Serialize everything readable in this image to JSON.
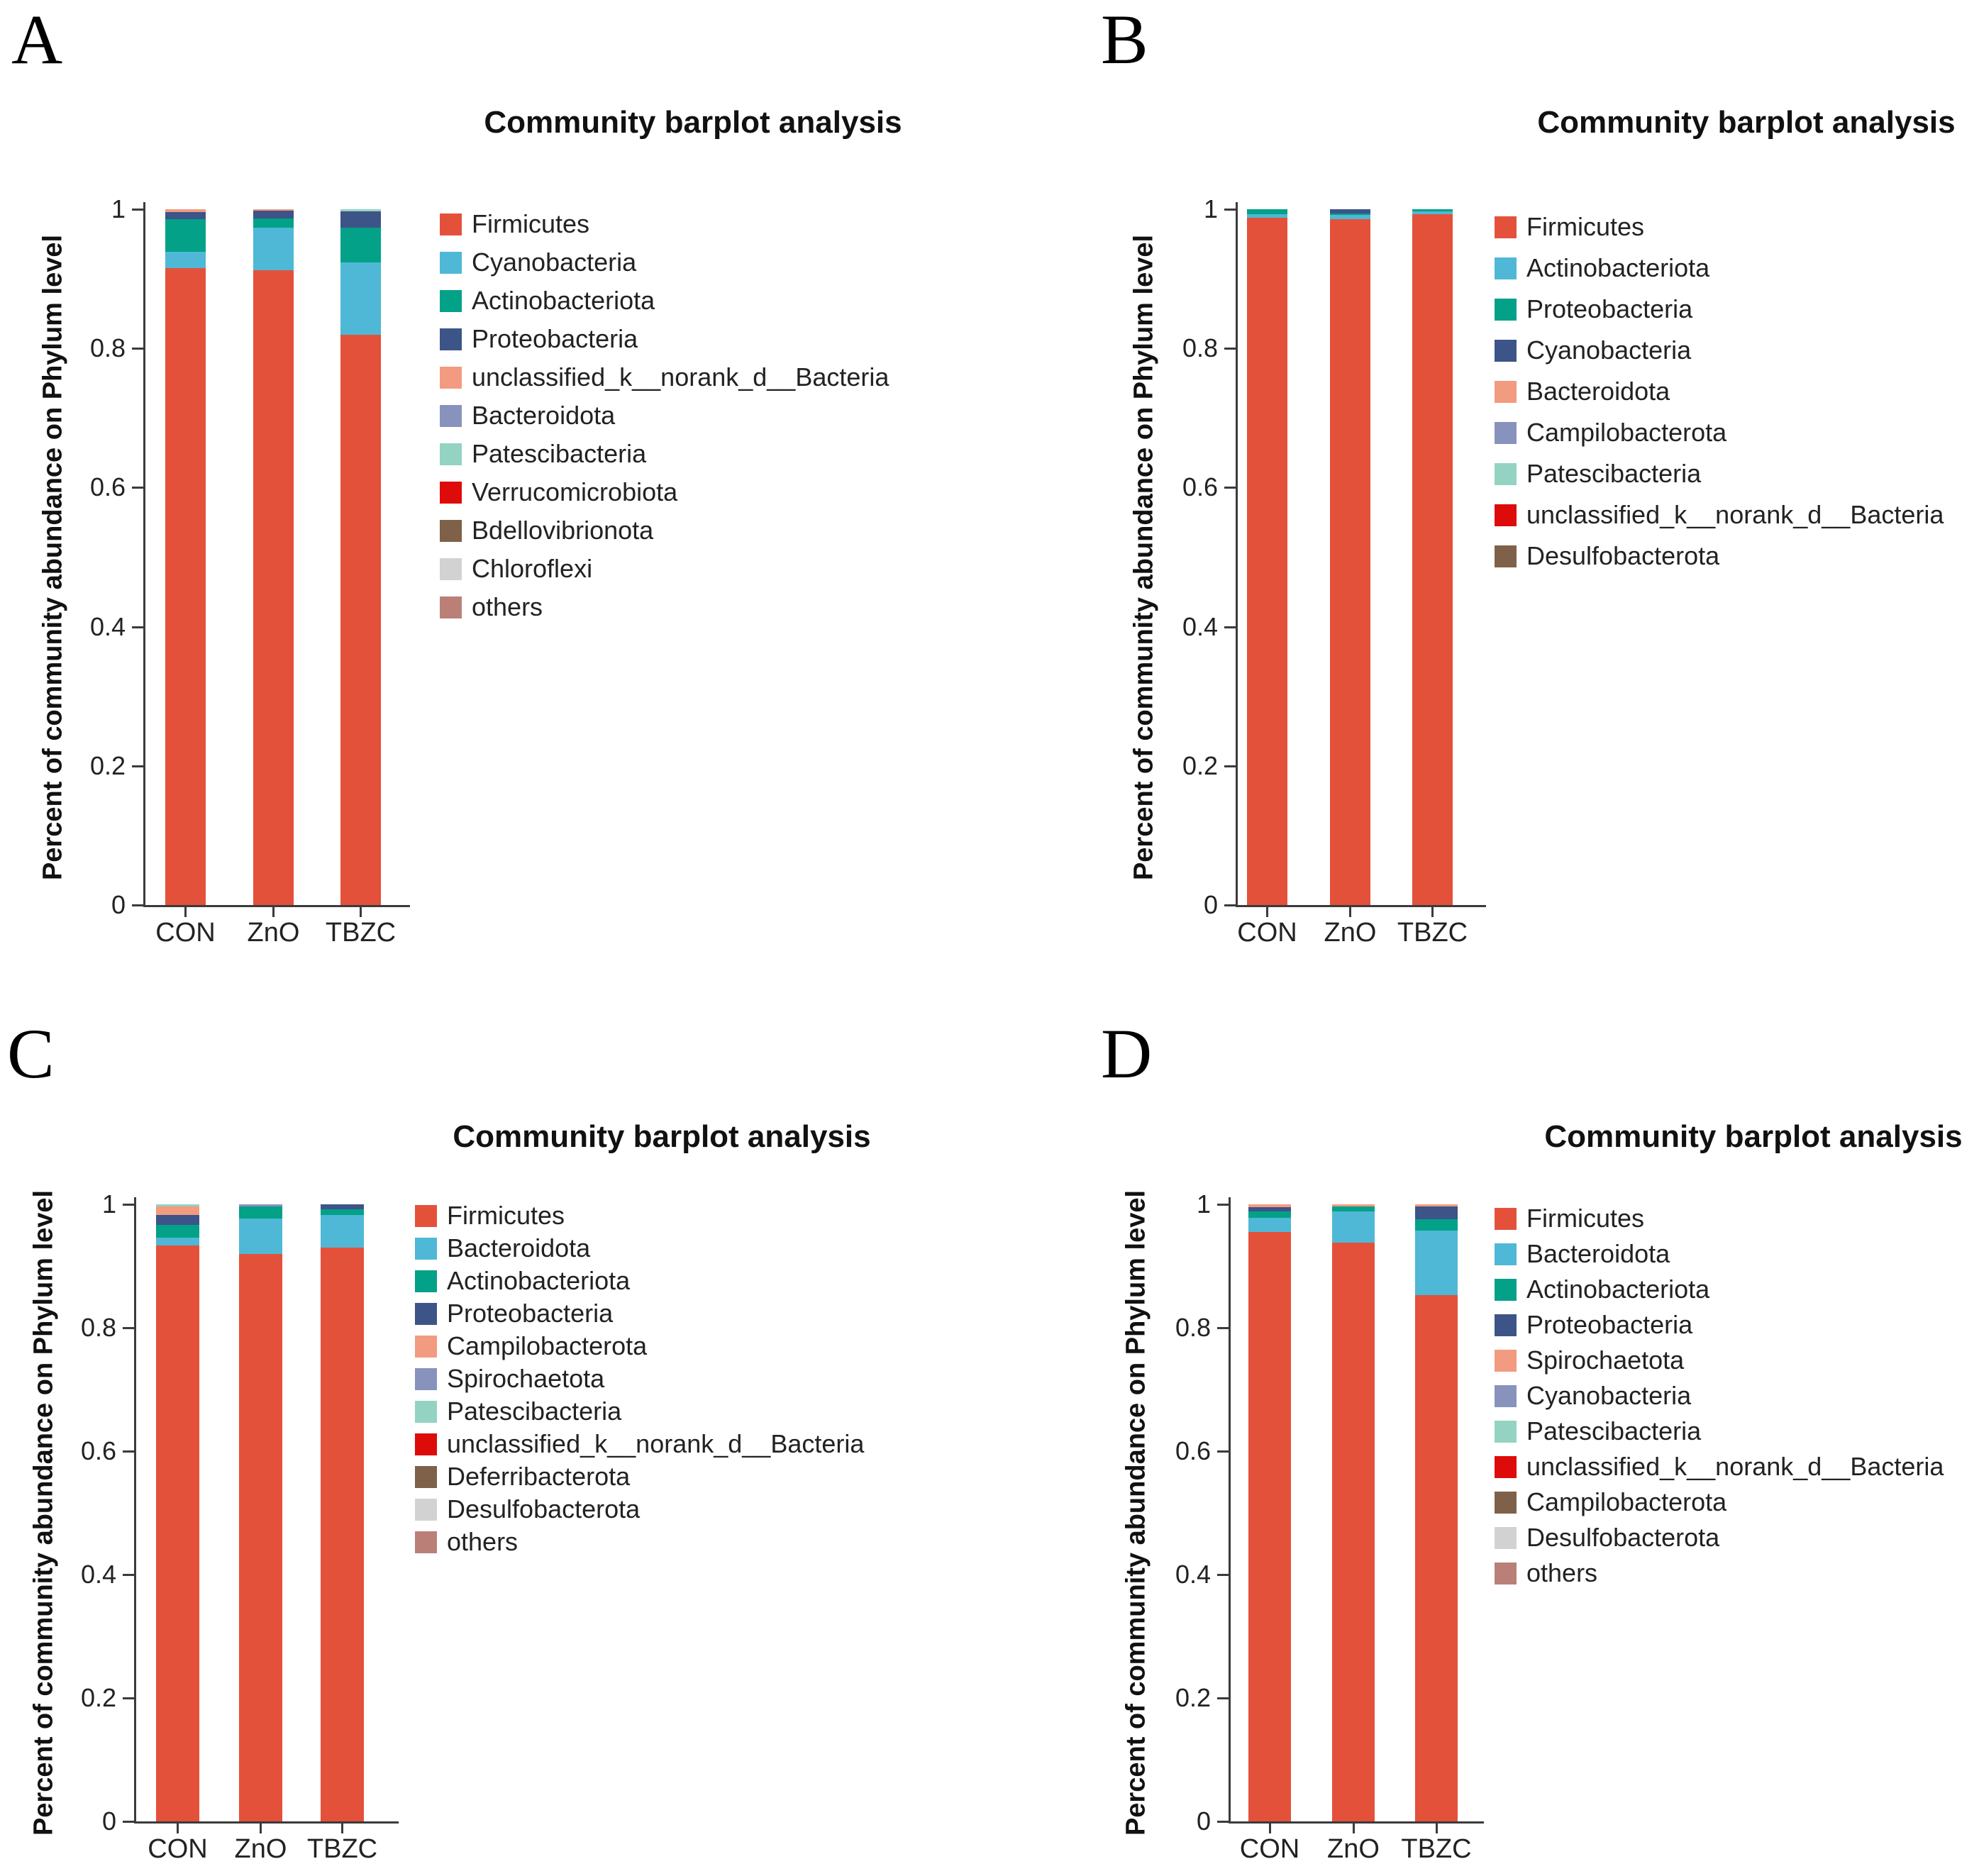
{
  "figure": {
    "background": "#ffffff"
  },
  "palette": {
    "red": "#E4513B",
    "lightblue": "#4FB8D6",
    "green": "#02A188",
    "navy": "#3C5488",
    "salmon": "#F29B80",
    "slate": "#8793BC",
    "mint": "#94D2C2",
    "brightred": "#DE0B0B",
    "brown": "#7E6148",
    "gray": "#D2D2D2",
    "rose": "#BA8078"
  },
  "panels": [
    {
      "id": "A",
      "label": "A",
      "title": "Community barplot analysis",
      "ylabel": "Percent of community abundance on Phylum level",
      "ytick_labels": [
        "1",
        "0.8",
        "0.6",
        "0.4",
        "0.2",
        "0"
      ]
    },
    {
      "id": "B",
      "label": "B",
      "title": "Community barplot analysis",
      "ylabel": "Percent of community abundance on Phylum level",
      "ytick_labels": [
        "1",
        "0.8",
        "0.6",
        "0.4",
        "0.2",
        "0"
      ]
    },
    {
      "id": "C",
      "label": "C",
      "title": "Community barplot analysis",
      "ylabel": "Percent of community abundance on Phylum level",
      "ytick_labels": [
        "1",
        "0.8",
        "0.6",
        "0.4",
        "0.2",
        "0"
      ]
    },
    {
      "id": "D",
      "label": "D",
      "title": "Community barplot analysis",
      "ylabel": "Percent of community abundance on Phylum level",
      "ytick_labels": [
        "1",
        "0.8",
        "0.6",
        "0.4",
        "0.2",
        "0"
      ]
    }
  ],
  "chart_data": [
    {
      "panel": "A",
      "type": "bar",
      "stacked": true,
      "title": "Community barplot analysis",
      "xlabel": "",
      "ylabel": "Percent of community abundance on Phylum level",
      "ylim": [
        0,
        1
      ],
      "yticks": [
        1,
        0.8,
        0.6,
        0.4,
        0.2,
        0
      ],
      "grid": false,
      "legend_position": "right",
      "categories": [
        "CON",
        "ZnO",
        "TBZC"
      ],
      "series": [
        {
          "name": "Firmicutes",
          "color_key": "red",
          "values": [
            0.915,
            0.912,
            0.82
          ]
        },
        {
          "name": "Cyanobacteria",
          "color_key": "lightblue",
          "values": [
            0.024,
            0.062,
            0.104
          ]
        },
        {
          "name": "Actinobacteriota",
          "color_key": "green",
          "values": [
            0.047,
            0.013,
            0.049
          ]
        },
        {
          "name": "Proteobacteria",
          "color_key": "navy",
          "values": [
            0.01,
            0.011,
            0.024
          ]
        },
        {
          "name": "unclassified_k__norank_d__Bacteria",
          "color_key": "salmon",
          "values": [
            0.004,
            0.002,
            0.0
          ]
        },
        {
          "name": "Bacteroidota",
          "color_key": "slate",
          "values": [
            0.0,
            0.0,
            0.0
          ]
        },
        {
          "name": "Patescibacteria",
          "color_key": "mint",
          "values": [
            0.0,
            0.0,
            0.003
          ]
        },
        {
          "name": "Verrucomicrobiota",
          "color_key": "brightred",
          "values": [
            0.0,
            0.0,
            0.0
          ]
        },
        {
          "name": "Bdellovibrionota",
          "color_key": "brown",
          "values": [
            0.0,
            0.0,
            0.0
          ]
        },
        {
          "name": "Chloroflexi",
          "color_key": "gray",
          "values": [
            0.0,
            0.0,
            0.0
          ]
        },
        {
          "name": "others",
          "color_key": "rose",
          "values": [
            0.0,
            0.0,
            0.0
          ]
        }
      ]
    },
    {
      "panel": "B",
      "type": "bar",
      "stacked": true,
      "title": "Community barplot analysis",
      "xlabel": "",
      "ylabel": "Percent of community abundance on Phylum level",
      "ylim": [
        0,
        1
      ],
      "yticks": [
        1,
        0.8,
        0.6,
        0.4,
        0.2,
        0
      ],
      "grid": false,
      "legend_position": "right",
      "categories": [
        "CON",
        "ZnO",
        "TBZC"
      ],
      "series": [
        {
          "name": "Firmicutes",
          "color_key": "red",
          "values": [
            0.988,
            0.986,
            0.993
          ]
        },
        {
          "name": "Actinobacteriota",
          "color_key": "lightblue",
          "values": [
            0.005,
            0.006,
            0.004
          ]
        },
        {
          "name": "Proteobacteria",
          "color_key": "green",
          "values": [
            0.007,
            0.002,
            0.003
          ]
        },
        {
          "name": "Cyanobacteria",
          "color_key": "navy",
          "values": [
            0.0,
            0.006,
            0.0
          ]
        },
        {
          "name": "Bacteroidota",
          "color_key": "salmon",
          "values": [
            0.0,
            0.0,
            0.0
          ]
        },
        {
          "name": "Campilobacterota",
          "color_key": "slate",
          "values": [
            0.0,
            0.0,
            0.0
          ]
        },
        {
          "name": "Patescibacteria",
          "color_key": "mint",
          "values": [
            0.0,
            0.0,
            0.0
          ]
        },
        {
          "name": "unclassified_k__norank_d__Bacteria",
          "color_key": "brightred",
          "values": [
            0.0,
            0.0,
            0.0
          ]
        },
        {
          "name": "Desulfobacterota",
          "color_key": "brown",
          "values": [
            0.0,
            0.0,
            0.0
          ]
        }
      ]
    },
    {
      "panel": "C",
      "type": "bar",
      "stacked": true,
      "title": "Community barplot analysis",
      "xlabel": "",
      "ylabel": "Percent of community abundance on Phylum level",
      "ylim": [
        0,
        1
      ],
      "yticks": [
        1,
        0.8,
        0.6,
        0.4,
        0.2,
        0
      ],
      "grid": false,
      "legend_position": "right",
      "categories": [
        "CON",
        "ZnO",
        "TBZC"
      ],
      "series": [
        {
          "name": "Firmicutes",
          "color_key": "red",
          "values": [
            0.933,
            0.92,
            0.93
          ]
        },
        {
          "name": "Bacteroidota",
          "color_key": "lightblue",
          "values": [
            0.013,
            0.057,
            0.053
          ]
        },
        {
          "name": "Actinobacteriota",
          "color_key": "green",
          "values": [
            0.021,
            0.019,
            0.009
          ]
        },
        {
          "name": "Proteobacteria",
          "color_key": "navy",
          "values": [
            0.016,
            0.0,
            0.008
          ]
        },
        {
          "name": "Campilobacterota",
          "color_key": "salmon",
          "values": [
            0.013,
            0.0,
            0.0
          ]
        },
        {
          "name": "Spirochaetota",
          "color_key": "slate",
          "values": [
            0.0,
            0.004,
            0.0
          ]
        },
        {
          "name": "Patescibacteria",
          "color_key": "mint",
          "values": [
            0.004,
            0.0,
            0.0
          ]
        },
        {
          "name": "unclassified_k__norank_d__Bacteria",
          "color_key": "brightred",
          "values": [
            0.0,
            0.0,
            0.0
          ]
        },
        {
          "name": "Deferribacterota",
          "color_key": "brown",
          "values": [
            0.0,
            0.0,
            0.0
          ]
        },
        {
          "name": "Desulfobacterota",
          "color_key": "gray",
          "values": [
            0.0,
            0.0,
            0.0
          ]
        },
        {
          "name": "others",
          "color_key": "rose",
          "values": [
            0.0,
            0.0,
            0.0
          ]
        }
      ]
    },
    {
      "panel": "D",
      "type": "bar",
      "stacked": true,
      "title": "Community barplot analysis",
      "xlabel": "",
      "ylabel": "Percent of community abundance on Phylum level",
      "ylim": [
        0,
        1
      ],
      "yticks": [
        1,
        0.8,
        0.6,
        0.4,
        0.2,
        0
      ],
      "grid": false,
      "legend_position": "right",
      "categories": [
        "CON",
        "ZnO",
        "TBZC"
      ],
      "series": [
        {
          "name": "Firmicutes",
          "color_key": "red",
          "values": [
            0.955,
            0.938,
            0.853
          ]
        },
        {
          "name": "Bacteroidota",
          "color_key": "lightblue",
          "values": [
            0.023,
            0.051,
            0.104
          ]
        },
        {
          "name": "Actinobacteriota",
          "color_key": "green",
          "values": [
            0.011,
            0.007,
            0.019
          ]
        },
        {
          "name": "Proteobacteria",
          "color_key": "navy",
          "values": [
            0.006,
            0.0,
            0.02
          ]
        },
        {
          "name": "Spirochaetota",
          "color_key": "salmon",
          "values": [
            0.005,
            0.004,
            0.004
          ]
        },
        {
          "name": "Cyanobacteria",
          "color_key": "slate",
          "values": [
            0.0,
            0.0,
            0.0
          ]
        },
        {
          "name": "Patescibacteria",
          "color_key": "mint",
          "values": [
            0.0,
            0.0,
            0.0
          ]
        },
        {
          "name": "unclassified_k__norank_d__Bacteria",
          "color_key": "brightred",
          "values": [
            0.0,
            0.0,
            0.0
          ]
        },
        {
          "name": "Campilobacterota",
          "color_key": "brown",
          "values": [
            0.0,
            0.0,
            0.0
          ]
        },
        {
          "name": "Desulfobacterota",
          "color_key": "gray",
          "values": [
            0.0,
            0.0,
            0.0
          ]
        },
        {
          "name": "others",
          "color_key": "rose",
          "values": [
            0.0,
            0.0,
            0.0
          ]
        }
      ]
    }
  ]
}
